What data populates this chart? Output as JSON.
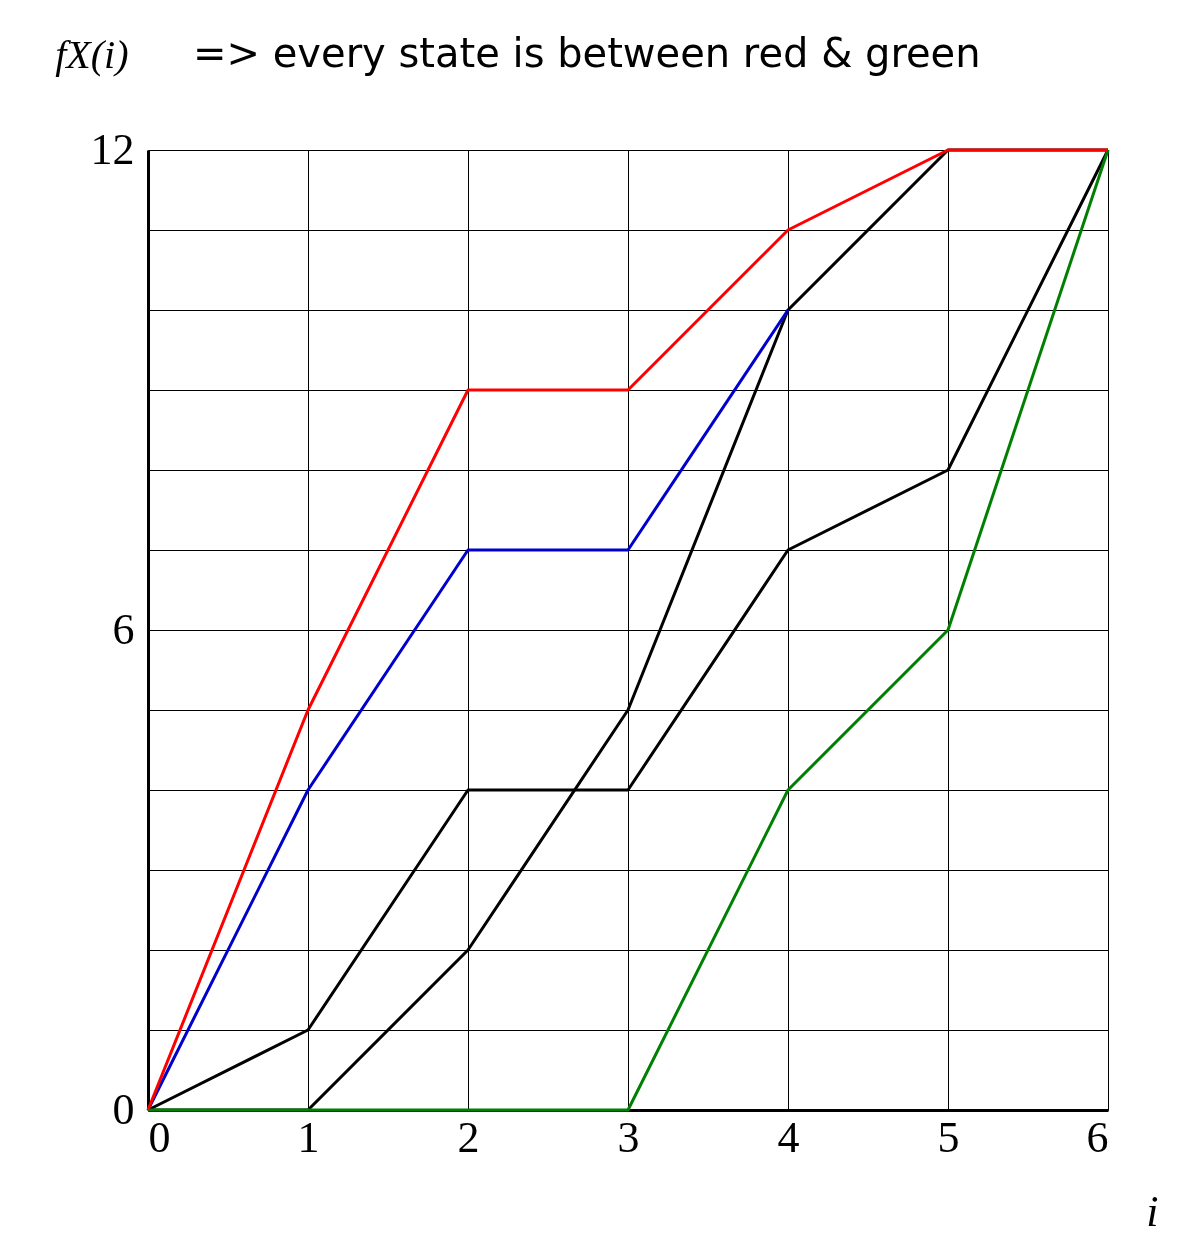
{
  "chart_data": {
    "type": "line",
    "title": "=> every state is between red & green",
    "xlabel": "i",
    "ylabel": "fX(i)",
    "x": [
      0,
      1,
      2,
      3,
      4,
      5,
      6
    ],
    "series": [
      {
        "color": "#000000",
        "values": [
          0,
          1,
          4,
          4,
          7,
          8,
          12
        ]
      },
      {
        "color": "#000000",
        "values": [
          0,
          0,
          2,
          5,
          10,
          12,
          12
        ]
      },
      {
        "color": "#0000cc",
        "values": [
          0,
          4,
          7,
          7,
          10,
          null,
          null
        ]
      },
      {
        "color": "#008000",
        "values": [
          0,
          0,
          0,
          0,
          4,
          6,
          12
        ]
      },
      {
        "color": "#ff0000",
        "values": [
          0,
          5,
          9,
          9,
          11,
          12,
          12
        ]
      }
    ],
    "xlim": [
      0,
      6
    ],
    "xticks": [
      0,
      1,
      2,
      3,
      4,
      5,
      6
    ],
    "ylim": [
      0,
      12
    ],
    "yticks": [
      0,
      {
        "value": 1,
        "label": null
      },
      {
        "value": 2,
        "label": null
      },
      {
        "value": 3,
        "label": null
      },
      {
        "value": 4,
        "label": null
      },
      {
        "value": 5,
        "label": null
      },
      6,
      {
        "value": 7,
        "label": null
      },
      {
        "value": 8,
        "label": null
      },
      {
        "value": 9,
        "label": null
      },
      {
        "value": 10,
        "label": null
      },
      {
        "value": 11,
        "label": null
      },
      12
    ],
    "grid": true,
    "legend": false,
    "marker": "none",
    "line_style": "solid"
  }
}
